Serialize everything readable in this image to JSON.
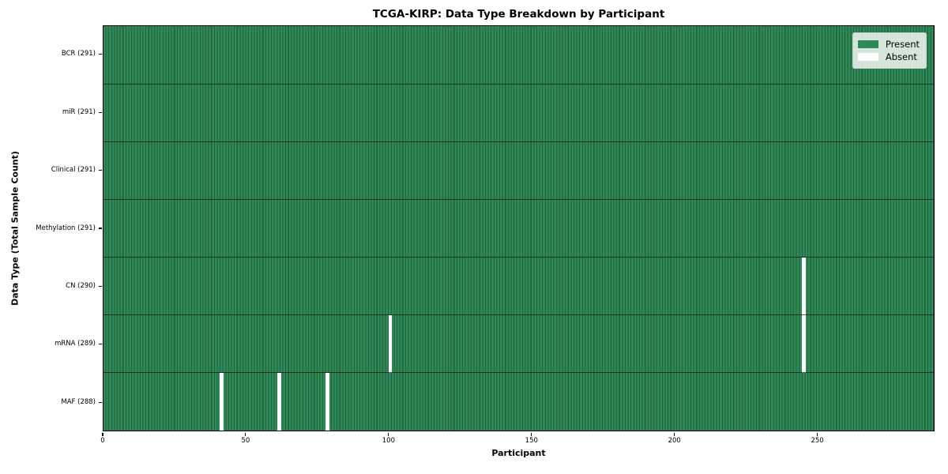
{
  "chart_data": {
    "type": "heatmap",
    "title": "TCGA-KIRP: Data Type Breakdown by Participant",
    "xlabel": "Participant",
    "ylabel": "Data Type (Total Sample Count)",
    "n_participants": 291,
    "xlim": [
      0,
      291
    ],
    "x_ticks": [
      0,
      50,
      100,
      150,
      200,
      250
    ],
    "grid": "row-dividers-and-cell-edges",
    "rows": [
      {
        "label": "BCR (291)",
        "data_type": "BCR",
        "present_count": 291,
        "missing_participants": []
      },
      {
        "label": "miR (291)",
        "data_type": "miR",
        "present_count": 291,
        "missing_participants": []
      },
      {
        "label": "Clinical (291)",
        "data_type": "Clinical",
        "present_count": 291,
        "missing_participants": []
      },
      {
        "label": "Methylation (291)",
        "data_type": "Methylation",
        "present_count": 291,
        "missing_participants": []
      },
      {
        "label": "CN (290)",
        "data_type": "CN",
        "present_count": 290,
        "missing_participants": [
          245
        ]
      },
      {
        "label": "mRNA (289)",
        "data_type": "mRNA",
        "present_count": 289,
        "missing_participants": [
          100,
          245
        ]
      },
      {
        "label": "MAF (288)",
        "data_type": "MAF",
        "present_count": 288,
        "missing_participants": [
          41,
          61,
          78
        ]
      }
    ],
    "colors": {
      "present": "#2e8b57",
      "cell_edge": "#235f3c",
      "absent": "#ffffff",
      "row_divider": "#141f17",
      "axis": "#000000",
      "legend_border": "#cccccc"
    },
    "legend": {
      "position": "upper right",
      "entries": [
        "Present",
        "Absent"
      ]
    }
  }
}
